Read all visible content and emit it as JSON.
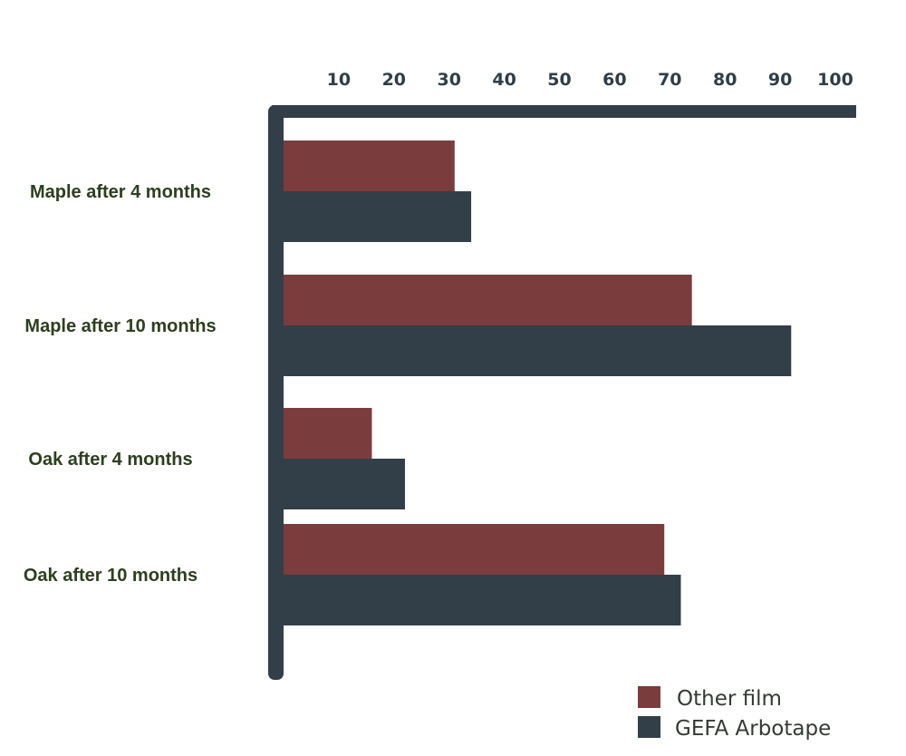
{
  "chart_data": {
    "type": "bar",
    "orientation": "horizontal",
    "title": "",
    "xlabel": "",
    "ylabel": "",
    "categories": [
      "Maple after 4 months",
      "Maple after 10 months",
      "Oak after 4 months",
      "Oak after 10 months"
    ],
    "series": [
      {
        "name": "Other film",
        "color": "#7a3c3d",
        "values": [
          31,
          74,
          16,
          69
        ]
      },
      {
        "name": "GEFA Arbotape",
        "color": "#323f48",
        "values": [
          34,
          92,
          22,
          72
        ]
      }
    ],
    "x_ticks": [
      10,
      20,
      30,
      40,
      50,
      60,
      70,
      80,
      90,
      100
    ],
    "xlim": [
      0,
      100
    ],
    "axis_color": "#323f48",
    "grid": false,
    "legend_position": "bottom-right"
  }
}
